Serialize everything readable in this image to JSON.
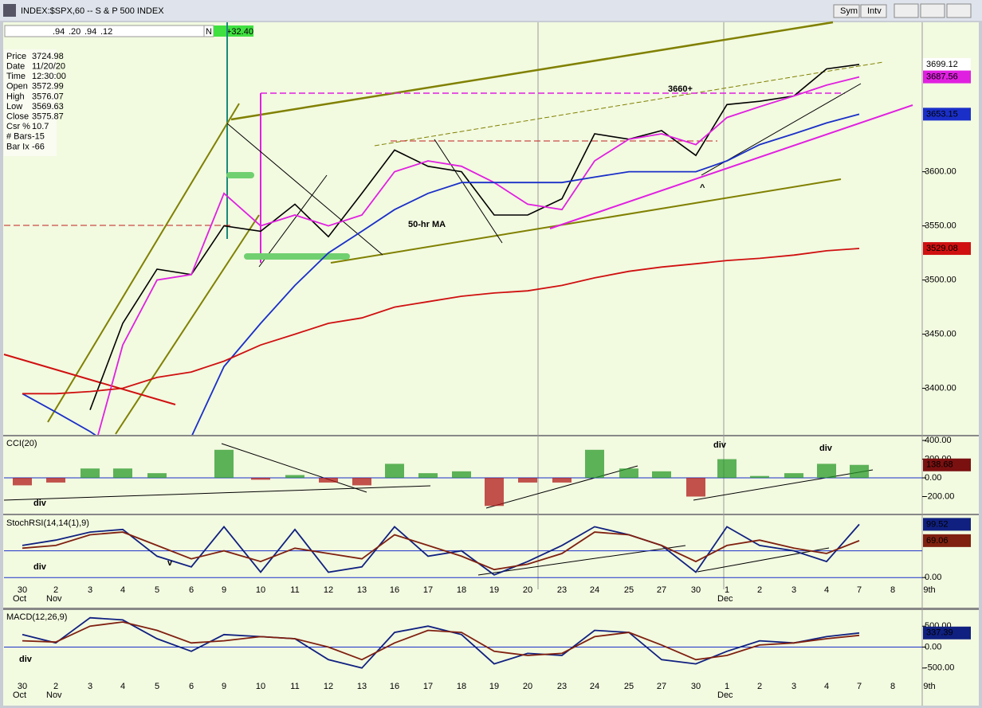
{
  "window": {
    "title": "INDEX:$SPX,60 -- S & P 500 INDEX",
    "toolbar_fields": [
      ".94",
      ".20",
      ".94",
      ".12"
    ],
    "toolbar_flag": "N",
    "change": "+32.40",
    "buttons": [
      "Sym",
      "Intv"
    ]
  },
  "data_window": {
    "rows": [
      [
        "Price",
        "3724.98"
      ],
      [
        "Date",
        "11/20/20"
      ],
      [
        "Time",
        "12:30:00"
      ],
      [
        "Open",
        "3572.99"
      ],
      [
        "High",
        "3576.07"
      ],
      [
        "Low",
        "3569.63"
      ],
      [
        "Close",
        "3575.87"
      ],
      [
        "Csr %",
        "10.7"
      ],
      [
        "# Bars",
        "-15"
      ],
      [
        "Bar Ix",
        "-66"
      ]
    ]
  },
  "chart_data": [
    {
      "type": "line",
      "ylim": [
        3357,
        3738
      ],
      "yticks": [
        {
          "value": 3400,
          "label": "3400.00"
        },
        {
          "value": 3450,
          "label": "3450.00"
        },
        {
          "value": 3500,
          "label": "3500.00"
        },
        {
          "value": 3550,
          "label": "3550.00"
        },
        {
          "value": 3600,
          "label": "3600.00"
        }
      ],
      "annotations": [
        "3660+",
        "50-hr MA",
        "^"
      ],
      "series": [
        {
          "name": "Price",
          "color": "#000000",
          "values": [
            null,
            null,
            3380,
            3460,
            3510,
            3505,
            3550,
            3545,
            3570,
            3540,
            3580,
            3620,
            3605,
            3600,
            3560,
            3560,
            3575,
            3635,
            3630,
            3638,
            3615,
            3662,
            3665,
            3670,
            3695,
            3699.12,
            null,
            null
          ]
        },
        {
          "name": "MA magenta",
          "color": "#e020e0",
          "values": [
            null,
            null,
            3330,
            3440,
            3500,
            3505,
            3580,
            3550,
            3560,
            3550,
            3560,
            3600,
            3610,
            3605,
            3590,
            3570,
            3565,
            3610,
            3630,
            3635,
            3625,
            3650,
            3660,
            3670,
            3680,
            3687.56,
            null,
            null
          ]
        },
        {
          "name": "50-hr MA",
          "color": "#1a2fc8",
          "values": [
            3395,
            3378,
            3360,
            3340,
            3335,
            3355,
            3420,
            3460,
            3495,
            3525,
            3545,
            3565,
            3580,
            3590,
            3590,
            3590,
            3590,
            3595,
            3600,
            3600,
            3600,
            3610,
            3625,
            3635,
            3645,
            3653.15,
            null,
            null
          ]
        },
        {
          "name": "MA red",
          "color": "#d01010",
          "values": [
            3395,
            3395,
            3397,
            3400,
            3410,
            3415,
            3425,
            3440,
            3450,
            3460,
            3465,
            3475,
            3480,
            3485,
            3488,
            3490,
            3495,
            3502,
            3508,
            3512,
            3515,
            3518,
            3520,
            3523,
            3527,
            3529.08,
            null,
            null
          ]
        }
      ]
    },
    {
      "type": "bar",
      "title": "CCI(20)",
      "ylim": [
        -383,
        443
      ],
      "yticks": [
        {
          "value": 400,
          "label": "400.00"
        },
        {
          "value": 200,
          "label": "200.00"
        },
        {
          "value": 0,
          "label": "0.00"
        },
        {
          "value": -200,
          "label": "-200.00"
        }
      ],
      "annotations": [
        "div",
        "div",
        "div"
      ],
      "color": "#2a9a2a",
      "neg_color": "#b01818",
      "label_color": "#7a1010",
      "values": [
        -80,
        -50,
        100,
        100,
        50,
        0,
        300,
        -20,
        30,
        -50,
        -80,
        150,
        50,
        70,
        -300,
        -50,
        -50,
        300,
        100,
        70,
        -200,
        200,
        20,
        50,
        150,
        138.68,
        null,
        null
      ]
    },
    {
      "type": "line",
      "title": "StochRSI(14,14(1),9)",
      "ylim": [
        -22,
        115
      ],
      "yticks": [
        {
          "value": 0,
          "label": "0.00"
        }
      ],
      "hlines": [
        50
      ],
      "annotations": [
        "div",
        "v"
      ],
      "categories": [
        "30",
        "2",
        "3",
        "4",
        "5",
        "6",
        "9",
        "10",
        "11",
        "12",
        "13",
        "16",
        "17",
        "18",
        "19",
        "20",
        "23",
        "24",
        "25",
        "27",
        "30",
        "1",
        "2",
        "3",
        "4",
        "7",
        "8",
        "9th"
      ],
      "months": [
        "Oct",
        "Nov",
        "Dec"
      ],
      "series": [
        {
          "name": "StochRSI",
          "color": "#102080",
          "values": [
            60,
            70,
            85,
            90,
            40,
            20,
            95,
            10,
            90,
            10,
            20,
            95,
            40,
            50,
            5,
            30,
            60,
            95,
            80,
            60,
            10,
            95,
            60,
            50,
            30,
            99.52,
            null,
            null
          ]
        },
        {
          "name": "Signal",
          "color": "#802010",
          "values": [
            55,
            60,
            80,
            85,
            60,
            35,
            50,
            30,
            55,
            45,
            35,
            80,
            60,
            40,
            15,
            25,
            45,
            85,
            80,
            60,
            30,
            60,
            70,
            55,
            45,
            69.06,
            null,
            null
          ]
        }
      ]
    },
    {
      "type": "line",
      "title": "MACD(12,26,9)",
      "ylim": [
        -808,
        885
      ],
      "yticks": [
        {
          "value": 500,
          "label": "500.00"
        },
        {
          "value": 0,
          "label": "0.00"
        },
        {
          "value": -500,
          "label": "-500.00"
        }
      ],
      "annotations": [
        "div"
      ],
      "categories": [
        "30",
        "2",
        "3",
        "4",
        "5",
        "6",
        "9",
        "10",
        "11",
        "12",
        "13",
        "16",
        "17",
        "18",
        "19",
        "20",
        "23",
        "24",
        "25",
        "27",
        "30",
        "1",
        "2",
        "3",
        "4",
        "7",
        "8",
        "9th"
      ],
      "months": [
        "Oct",
        "Nov",
        "Dec"
      ],
      "series": [
        {
          "name": "MACD",
          "color": "#102080",
          "values": [
            300,
            100,
            700,
            650,
            200,
            -100,
            300,
            250,
            200,
            -300,
            -500,
            350,
            500,
            300,
            -400,
            -150,
            -200,
            400,
            350,
            -300,
            -400,
            -100,
            150,
            100,
            250,
            337.39,
            null,
            null
          ]
        },
        {
          "name": "Signal",
          "color": "#802010",
          "values": [
            150,
            120,
            500,
            600,
            400,
            100,
            150,
            250,
            200,
            0,
            -300,
            100,
            400,
            350,
            -100,
            -200,
            -150,
            250,
            350,
            50,
            -300,
            -200,
            50,
            100,
            200,
            280,
            null,
            null
          ]
        }
      ]
    }
  ]
}
